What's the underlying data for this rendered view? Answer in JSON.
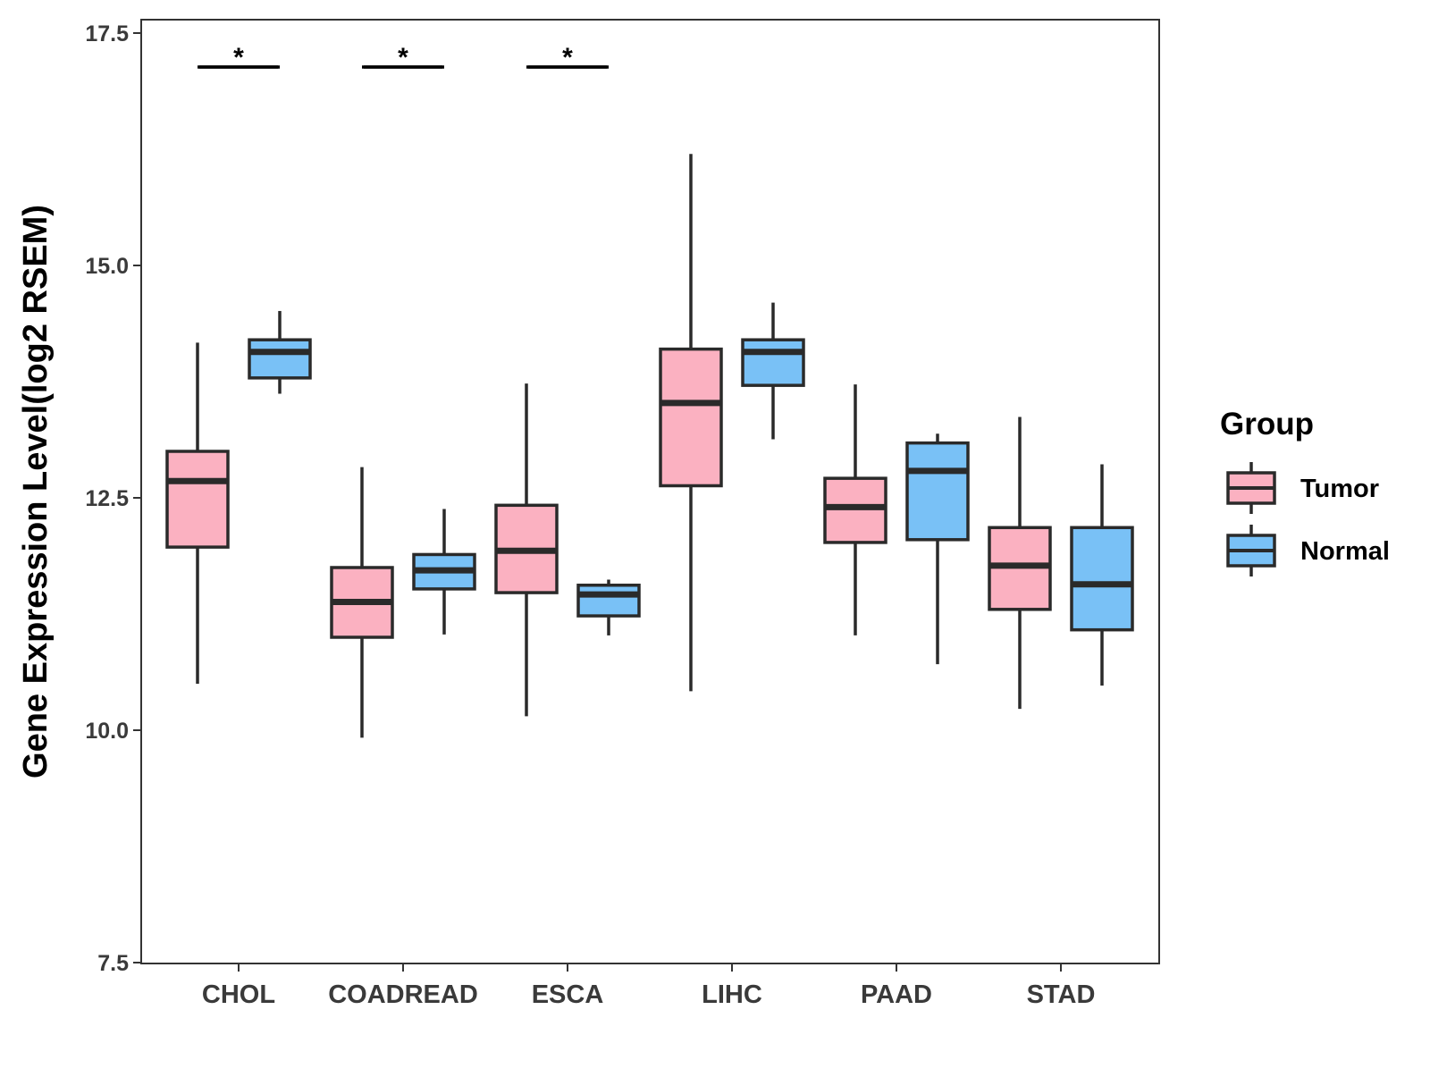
{
  "chart_data": {
    "type": "boxplot",
    "title": "",
    "xlabel": "",
    "ylabel": "Gene Expression Level(log2 RSEM)",
    "ylim": [
      7.5,
      17.5
    ],
    "yticks": [
      7.5,
      10.0,
      12.5,
      15.0,
      17.5
    ],
    "ytick_labels": [
      "7.5",
      "10.0",
      "12.5",
      "15.0",
      "17.5"
    ],
    "grid": false,
    "legend": {
      "title": "Group",
      "placement": "right",
      "entries": [
        {
          "name": "Tumor",
          "color": "#FBB1C1"
        },
        {
          "name": "Normal",
          "color": "#79C1F6"
        }
      ]
    },
    "categories": [
      "CHOL",
      "COADREAD",
      "ESCA",
      "LIHC",
      "PAAD",
      "STAD"
    ],
    "series": [
      {
        "name": "Tumor",
        "color": "#FBB1C1",
        "boxes": [
          {
            "min": 10.5,
            "q1": 11.97,
            "median": 12.68,
            "q3": 13.0,
            "max": 14.17
          },
          {
            "min": 9.92,
            "q1": 11.0,
            "median": 11.38,
            "q3": 11.75,
            "max": 12.83
          },
          {
            "min": 10.15,
            "q1": 11.48,
            "median": 11.93,
            "q3": 12.42,
            "max": 13.73
          },
          {
            "min": 10.42,
            "q1": 12.63,
            "median": 13.52,
            "q3": 14.1,
            "max": 16.2
          },
          {
            "min": 11.02,
            "q1": 12.02,
            "median": 12.4,
            "q3": 12.71,
            "max": 13.72
          },
          {
            "min": 10.23,
            "q1": 11.3,
            "median": 11.77,
            "q3": 12.18,
            "max": 13.37
          }
        ]
      },
      {
        "name": "Normal",
        "color": "#79C1F6",
        "boxes": [
          {
            "min": 13.62,
            "q1": 13.79,
            "median": 14.07,
            "q3": 14.2,
            "max": 14.51
          },
          {
            "min": 11.03,
            "q1": 11.52,
            "median": 11.72,
            "q3": 11.89,
            "max": 12.38
          },
          {
            "min": 11.02,
            "q1": 11.23,
            "median": 11.46,
            "q3": 11.56,
            "max": 11.62
          },
          {
            "min": 13.13,
            "q1": 13.71,
            "median": 14.07,
            "q3": 14.2,
            "max": 14.6
          },
          {
            "min": 10.71,
            "q1": 12.05,
            "median": 12.79,
            "q3": 13.09,
            "max": 13.19
          },
          {
            "min": 10.48,
            "q1": 11.08,
            "median": 11.57,
            "q3": 12.18,
            "max": 12.86
          }
        ]
      }
    ],
    "significance": [
      {
        "category": "CHOL",
        "label": "*"
      },
      {
        "category": "COADREAD",
        "label": "*"
      },
      {
        "category": "ESCA",
        "label": "*"
      }
    ]
  }
}
